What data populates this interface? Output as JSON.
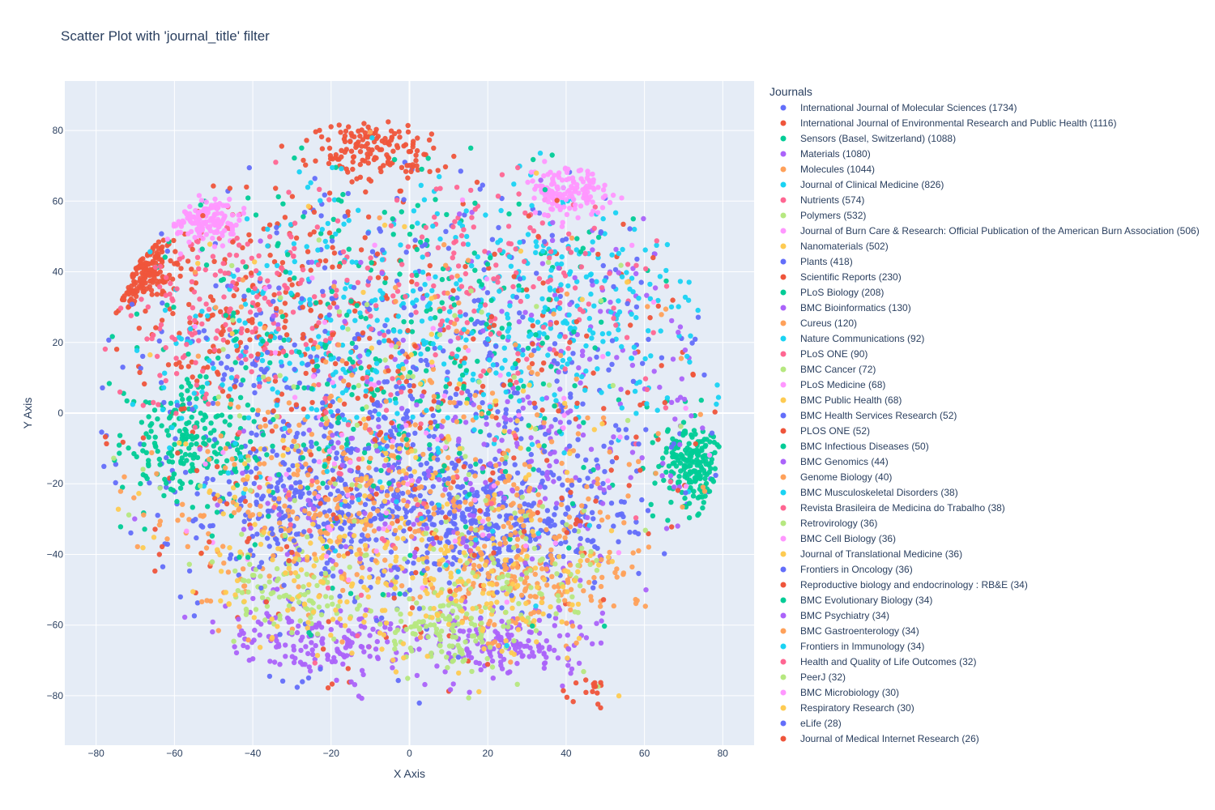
{
  "chart_data": {
    "type": "scatter",
    "title": "Scatter Plot with 'journal_title' filter",
    "xlabel": "X Axis",
    "ylabel": "Y Axis",
    "xlim": [
      -88,
      88
    ],
    "ylim": [
      -94,
      94
    ],
    "x_ticks": [
      -80,
      -60,
      -40,
      -20,
      0,
      20,
      40,
      60,
      80
    ],
    "y_ticks": [
      -80,
      -60,
      -40,
      -20,
      0,
      20,
      40,
      60,
      80
    ],
    "x_tick_labels": [
      "−80",
      "−60",
      "−40",
      "−20",
      "0",
      "20",
      "40",
      "60",
      "80"
    ],
    "y_tick_labels": [
      "−80",
      "−60",
      "−40",
      "−20",
      "0",
      "20",
      "40",
      "60",
      "80"
    ],
    "grid": true,
    "plot_background": "#E5ECF6",
    "legend_title": "Journals",
    "legend_position": "right",
    "series": [
      {
        "name": "International Journal of Molecular Sciences (1734)",
        "color": "#636EFA",
        "count": 1734,
        "regions": [
          {
            "cx": -20,
            "cy": -25,
            "sx": 18,
            "sy": 12
          },
          {
            "cx": 25,
            "cy": -30,
            "sx": 15,
            "sy": 10
          },
          {
            "cx": 0,
            "cy": 10,
            "sx": 35,
            "sy": 30
          }
        ]
      },
      {
        "name": "International Journal of Environmental Research and Public Health (1116)",
        "color": "#EF553B",
        "count": 1116,
        "regions": [
          {
            "cx": -40,
            "cy": 30,
            "sx": 25,
            "sy": 15
          },
          {
            "cx": 0,
            "cy": 0,
            "sx": 40,
            "sy": 35
          },
          {
            "cx": -72,
            "cy": 42,
            "sx": 5,
            "sy": 5
          },
          {
            "cx": -10,
            "cy": 75,
            "sx": 8,
            "sy": 5
          }
        ]
      },
      {
        "name": "Sensors (Basel, Switzerland) (1088)",
        "color": "#00CC96",
        "count": 1088,
        "regions": [
          {
            "cx": 0,
            "cy": 15,
            "sx": 38,
            "sy": 30
          },
          {
            "cx": 72,
            "cy": -15,
            "sx": 4,
            "sy": 6
          },
          {
            "cx": -55,
            "cy": -8,
            "sx": 8,
            "sy": 8
          }
        ]
      },
      {
        "name": "Materials (1080)",
        "color": "#AB63FA",
        "count": 1080,
        "regions": [
          {
            "cx": -25,
            "cy": -65,
            "sx": 15,
            "sy": 5
          },
          {
            "cx": 25,
            "cy": -66,
            "sx": 12,
            "sy": 5
          },
          {
            "cx": 40,
            "cy": 0,
            "sx": 20,
            "sy": 25
          },
          {
            "cx": 0,
            "cy": -30,
            "sx": 30,
            "sy": 20
          }
        ]
      },
      {
        "name": "Molecules (1044)",
        "color": "#FFA15A",
        "count": 1044,
        "regions": [
          {
            "cx": 10,
            "cy": -20,
            "sx": 25,
            "sy": 15
          },
          {
            "cx": -30,
            "cy": -30,
            "sx": 20,
            "sy": 15
          },
          {
            "cx": 30,
            "cy": -45,
            "sx": 15,
            "sy": 10
          }
        ]
      },
      {
        "name": "Journal of Clinical Medicine (826)",
        "color": "#19D3F3",
        "count": 826,
        "regions": [
          {
            "cx": -20,
            "cy": 25,
            "sx": 30,
            "sy": 20
          },
          {
            "cx": 40,
            "cy": 30,
            "sx": 20,
            "sy": 15
          }
        ]
      },
      {
        "name": "Nutrients (574)",
        "color": "#FF6692",
        "count": 574,
        "regions": [
          {
            "cx": -50,
            "cy": 30,
            "sx": 15,
            "sy": 15
          },
          {
            "cx": 20,
            "cy": 40,
            "sx": 25,
            "sy": 15
          }
        ]
      },
      {
        "name": "Polymers (532)",
        "color": "#B6E880",
        "count": 532,
        "regions": [
          {
            "cx": -30,
            "cy": -50,
            "sx": 10,
            "sy": 8
          },
          {
            "cx": 8,
            "cy": -62,
            "sx": 7,
            "sy": 5
          },
          {
            "cx": 25,
            "cy": -45,
            "sx": 15,
            "sy": 12
          }
        ]
      },
      {
        "name": "Journal of Burn Care & Research: Official Publication of the American Burn Association (506)",
        "color": "#FF97FF",
        "count": 506,
        "regions": [
          {
            "cx": 42,
            "cy": 63,
            "sx": 5,
            "sy": 4
          },
          {
            "cx": -52,
            "cy": 54,
            "sx": 4,
            "sy": 3
          }
        ]
      },
      {
        "name": "Nanomaterials (502)",
        "color": "#FECB52",
        "count": 502,
        "regions": [
          {
            "cx": -20,
            "cy": -40,
            "sx": 25,
            "sy": 15
          },
          {
            "cx": 15,
            "cy": -50,
            "sx": 20,
            "sy": 10
          }
        ]
      },
      {
        "name": "Plants (418)",
        "color": "#636EFA",
        "count": 418,
        "regions": [
          {
            "cx": -10,
            "cy": -10,
            "sx": 35,
            "sy": 30
          }
        ]
      },
      {
        "name": "Scientific Reports (230)",
        "color": "#EF553B",
        "count": 230,
        "regions": [
          {
            "cx": 0,
            "cy": 10,
            "sx": 40,
            "sy": 35
          }
        ]
      },
      {
        "name": "PLoS Biology (208)",
        "color": "#00CC96",
        "count": 208,
        "regions": [
          {
            "cx": -5,
            "cy": 20,
            "sx": 35,
            "sy": 30
          }
        ]
      },
      {
        "name": "BMC Bioinformatics (130)",
        "color": "#AB63FA",
        "count": 130,
        "regions": [
          {
            "cx": 10,
            "cy": 0,
            "sx": 35,
            "sy": 30
          }
        ]
      },
      {
        "name": "Cureus (120)",
        "color": "#FFA15A",
        "count": 120,
        "regions": [
          {
            "cx": 0,
            "cy": 0,
            "sx": 40,
            "sy": 35
          }
        ]
      },
      {
        "name": "Nature Communications (92)",
        "color": "#19D3F3",
        "count": 92,
        "regions": [
          {
            "cx": 0,
            "cy": 10,
            "sx": 38,
            "sy": 30
          }
        ]
      },
      {
        "name": "PLoS ONE (90)",
        "color": "#FF6692",
        "count": 90,
        "regions": [
          {
            "cx": 0,
            "cy": 10,
            "sx": 38,
            "sy": 30
          }
        ]
      },
      {
        "name": "BMC Cancer (72)",
        "color": "#B6E880",
        "count": 72,
        "regions": [
          {
            "cx": 0,
            "cy": -10,
            "sx": 38,
            "sy": 30
          }
        ]
      },
      {
        "name": "PLoS Medicine (68)",
        "color": "#FF97FF",
        "count": 68,
        "regions": [
          {
            "cx": 0,
            "cy": 10,
            "sx": 38,
            "sy": 30
          }
        ]
      },
      {
        "name": "BMC Public Health (68)",
        "color": "#FECB52",
        "count": 68,
        "regions": [
          {
            "cx": 0,
            "cy": -10,
            "sx": 38,
            "sy": 30
          }
        ]
      },
      {
        "name": "BMC Health Services Research (52)",
        "color": "#636EFA",
        "count": 52,
        "regions": [
          {
            "cx": 0,
            "cy": 0,
            "sx": 38,
            "sy": 30
          }
        ]
      },
      {
        "name": "PLOS ONE (52)",
        "color": "#EF553B",
        "count": 52,
        "regions": [
          {
            "cx": 46,
            "cy": -77,
            "sx": 2.5,
            "sy": 3
          },
          {
            "cx": 0,
            "cy": 10,
            "sx": 35,
            "sy": 30
          }
        ]
      },
      {
        "name": "BMC Infectious Diseases (50)",
        "color": "#00CC96",
        "count": 50,
        "regions": [
          {
            "cx": 0,
            "cy": 0,
            "sx": 38,
            "sy": 30
          }
        ]
      },
      {
        "name": "BMC Genomics (44)",
        "color": "#AB63FA",
        "count": 44,
        "regions": [
          {
            "cx": 0,
            "cy": 0,
            "sx": 38,
            "sy": 30
          }
        ]
      },
      {
        "name": "Genome Biology (40)",
        "color": "#FFA15A",
        "count": 40,
        "regions": [
          {
            "cx": 0,
            "cy": 0,
            "sx": 38,
            "sy": 30
          }
        ]
      },
      {
        "name": "BMC Musculoskeletal Disorders (38)",
        "color": "#19D3F3",
        "count": 38,
        "regions": [
          {
            "cx": 0,
            "cy": 0,
            "sx": 38,
            "sy": 30
          }
        ]
      },
      {
        "name": "Revista Brasileira de Medicina do Trabalho (38)",
        "color": "#FF6692",
        "count": 38,
        "regions": [
          {
            "cx": 0,
            "cy": 0,
            "sx": 38,
            "sy": 30
          }
        ]
      },
      {
        "name": "Retrovirology (36)",
        "color": "#B6E880",
        "count": 36,
        "regions": [
          {
            "cx": 0,
            "cy": 0,
            "sx": 38,
            "sy": 30
          }
        ]
      },
      {
        "name": "BMC Cell Biology (36)",
        "color": "#FF97FF",
        "count": 36,
        "regions": [
          {
            "cx": 0,
            "cy": 0,
            "sx": 38,
            "sy": 30
          }
        ]
      },
      {
        "name": "Journal of Translational Medicine (36)",
        "color": "#FECB52",
        "count": 36,
        "regions": [
          {
            "cx": 0,
            "cy": 0,
            "sx": 38,
            "sy": 30
          }
        ]
      },
      {
        "name": "Frontiers in Oncology (36)",
        "color": "#636EFA",
        "count": 36,
        "regions": [
          {
            "cx": 0,
            "cy": 0,
            "sx": 38,
            "sy": 30
          }
        ]
      },
      {
        "name": "Reproductive biology and endocrinology : RB&E (34)",
        "color": "#EF553B",
        "count": 34,
        "regions": [
          {
            "cx": 0,
            "cy": 0,
            "sx": 38,
            "sy": 30
          }
        ]
      },
      {
        "name": "BMC Evolutionary Biology (34)",
        "color": "#00CC96",
        "count": 34,
        "regions": [
          {
            "cx": 0,
            "cy": 0,
            "sx": 38,
            "sy": 30
          }
        ]
      },
      {
        "name": "BMC Psychiatry (34)",
        "color": "#AB63FA",
        "count": 34,
        "regions": [
          {
            "cx": 0,
            "cy": 0,
            "sx": 38,
            "sy": 30
          }
        ]
      },
      {
        "name": "BMC Gastroenterology (34)",
        "color": "#FFA15A",
        "count": 34,
        "regions": [
          {
            "cx": 0,
            "cy": 0,
            "sx": 38,
            "sy": 30
          }
        ]
      },
      {
        "name": "Frontiers in Immunology (34)",
        "color": "#19D3F3",
        "count": 34,
        "regions": [
          {
            "cx": 0,
            "cy": 0,
            "sx": 38,
            "sy": 30
          }
        ]
      },
      {
        "name": "Health and Quality of Life Outcomes (32)",
        "color": "#FF6692",
        "count": 32,
        "regions": [
          {
            "cx": 0,
            "cy": 0,
            "sx": 38,
            "sy": 30
          }
        ]
      },
      {
        "name": "PeerJ (32)",
        "color": "#B6E880",
        "count": 32,
        "regions": [
          {
            "cx": 0,
            "cy": 0,
            "sx": 38,
            "sy": 30
          }
        ]
      },
      {
        "name": "BMC Microbiology (30)",
        "color": "#FF97FF",
        "count": 30,
        "regions": [
          {
            "cx": 0,
            "cy": 0,
            "sx": 38,
            "sy": 30
          }
        ]
      },
      {
        "name": "Respiratory Research (30)",
        "color": "#FECB52",
        "count": 30,
        "regions": [
          {
            "cx": 0,
            "cy": 0,
            "sx": 38,
            "sy": 30
          }
        ]
      },
      {
        "name": "eLife (28)",
        "color": "#636EFA",
        "count": 28,
        "regions": [
          {
            "cx": 0,
            "cy": 0,
            "sx": 38,
            "sy": 30
          }
        ]
      },
      {
        "name": "Journal of Medical Internet Research (26)",
        "color": "#EF553B",
        "count": 26,
        "regions": [
          {
            "cx": 0,
            "cy": 0,
            "sx": 38,
            "sy": 30
          }
        ]
      }
    ]
  }
}
